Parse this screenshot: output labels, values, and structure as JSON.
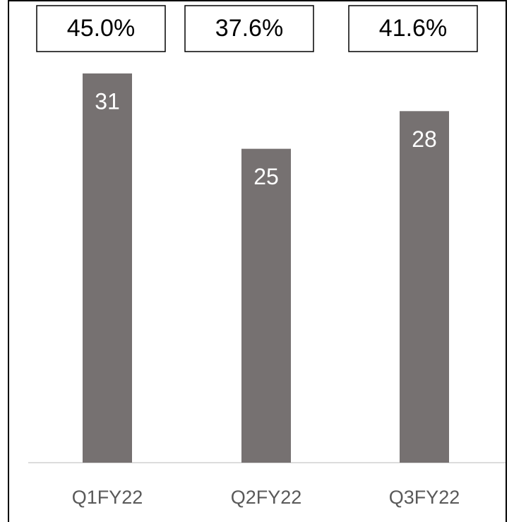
{
  "chart_data": {
    "type": "bar",
    "categories": [
      "Q1FY22",
      "Q2FY22",
      "Q3FY22"
    ],
    "values": [
      31,
      25,
      28
    ],
    "color": "#767171",
    "annotations": [
      "45.0%",
      "37.6%",
      "41.6%"
    ]
  }
}
